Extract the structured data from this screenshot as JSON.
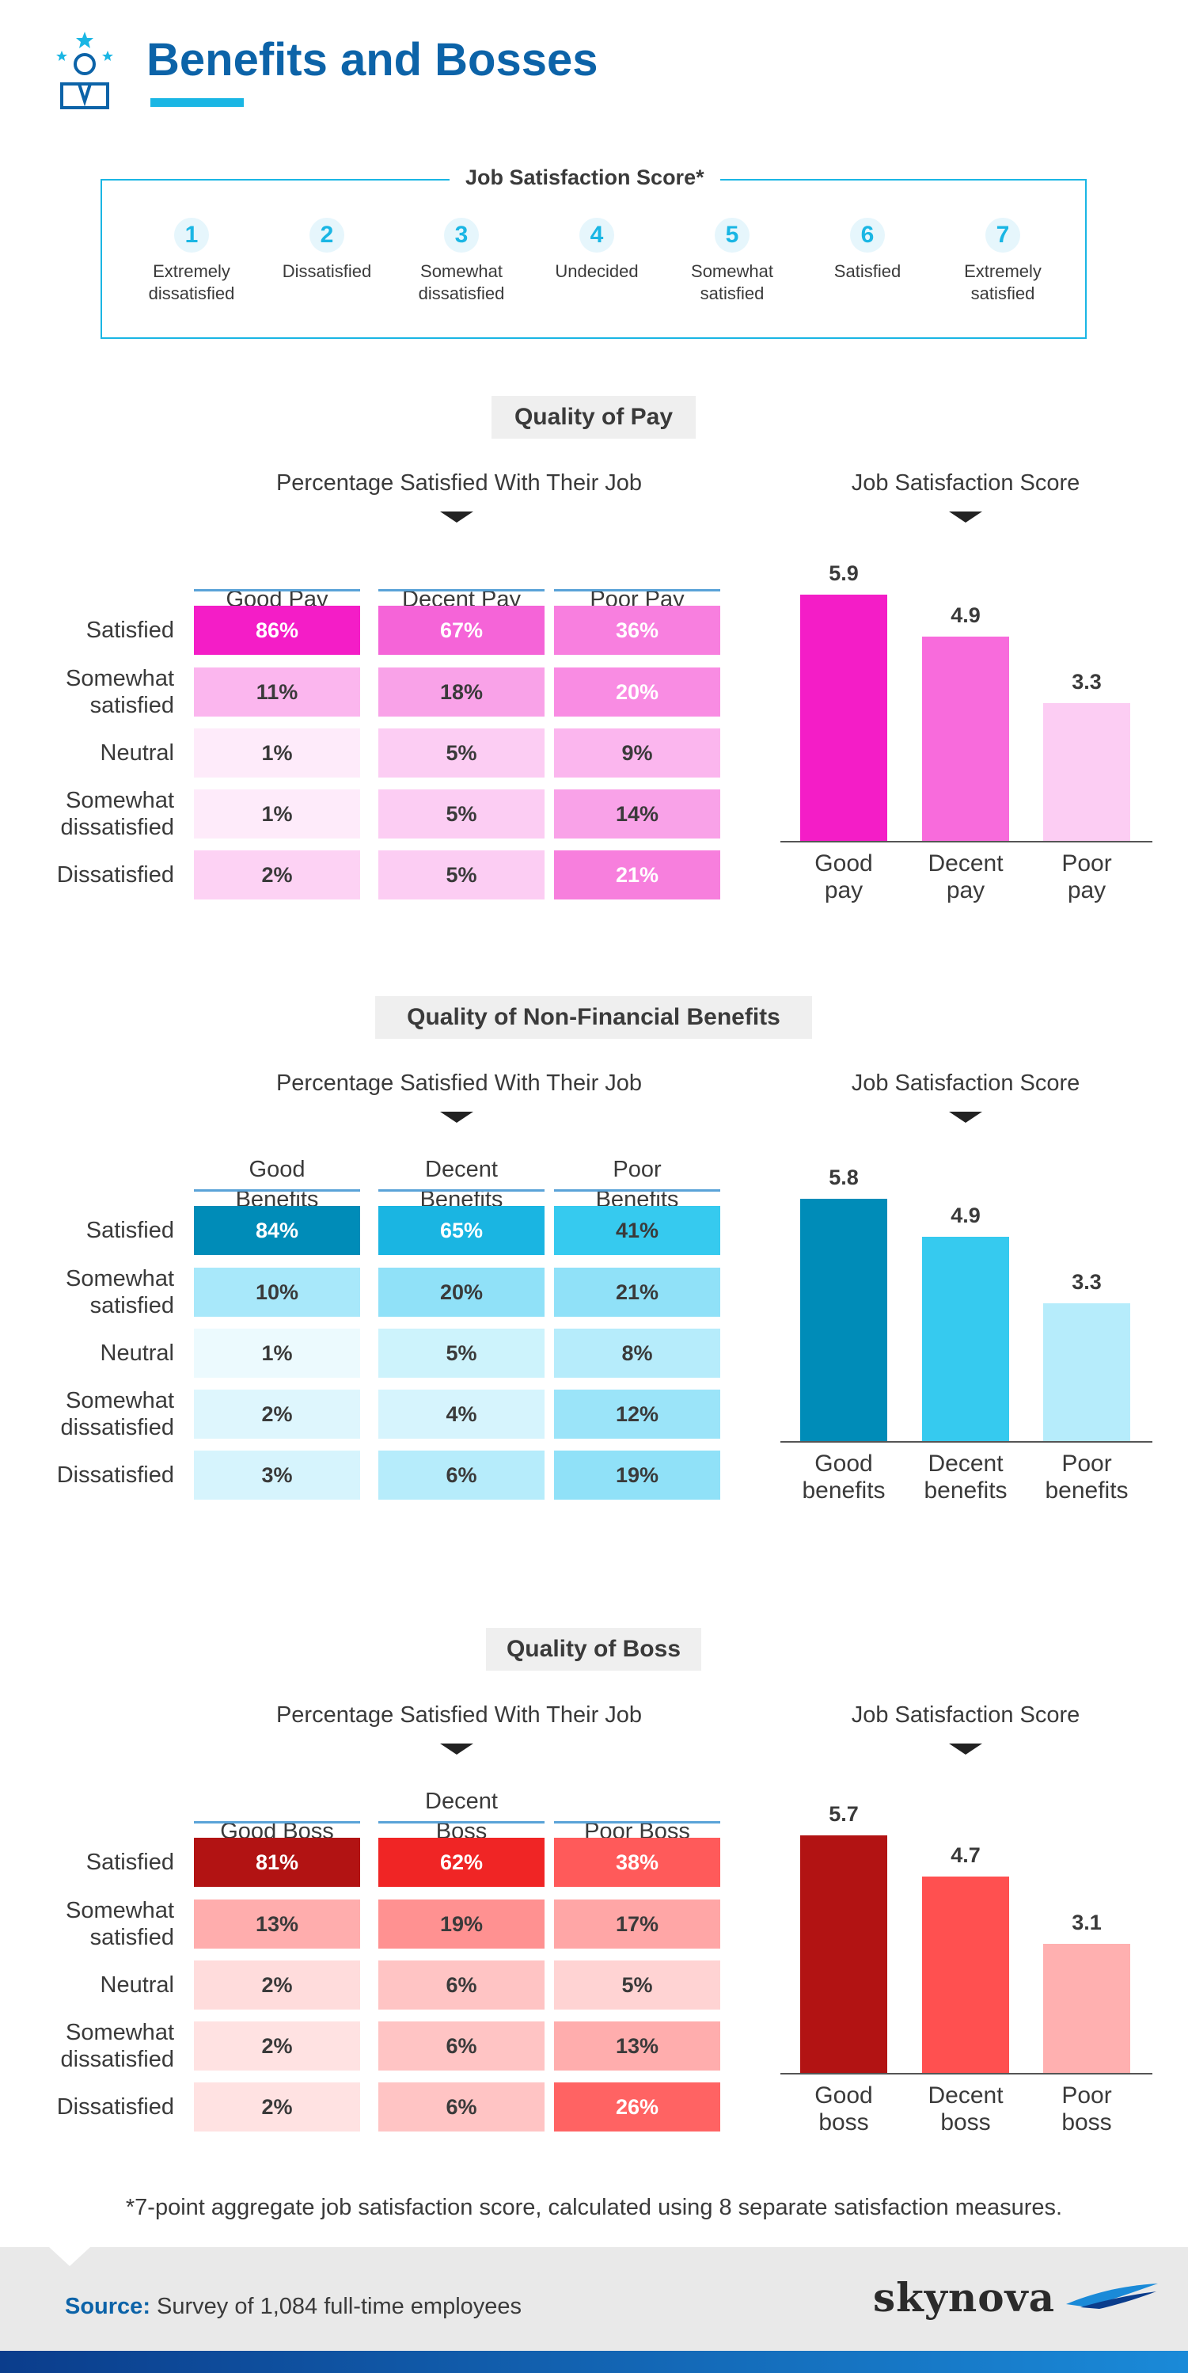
{
  "header": {
    "title": "Benefits and Bosses"
  },
  "scale": {
    "title": "Job Satisfaction Score*",
    "items": [
      {
        "num": "1",
        "label": "Extremely dissatisfied"
      },
      {
        "num": "2",
        "label": "Dissatisfied"
      },
      {
        "num": "3",
        "label": "Somewhat dissatisfied"
      },
      {
        "num": "4",
        "label": "Undecided"
      },
      {
        "num": "5",
        "label": "Somewhat satisfied"
      },
      {
        "num": "6",
        "label": "Satisfied"
      },
      {
        "num": "7",
        "label": "Extremely satisfied"
      }
    ]
  },
  "row_labels": [
    "Satisfied",
    "Somewhat satisfied",
    "Neutral",
    "Somewhat dissatisfied",
    "Dissatisfied"
  ],
  "table_title": "Percentage Satisfied With Their Job",
  "bar_title": "Job Satisfaction Score",
  "colors": {
    "pink": [
      "#f41dc7",
      "#f564d8",
      "#f98ce3",
      "#fbb6ee",
      "#fdd2f4",
      "#feebfa"
    ],
    "blue": [
      "#008cb8",
      "#1ab5e2",
      "#36caef",
      "#90e1f8",
      "#bff0fb",
      "#def6fd",
      "#ecfafe"
    ],
    "red": [
      "#b21313",
      "#f02525",
      "#ff5555",
      "#ff9a9a",
      "#ffc4c4",
      "#ffdcdc"
    ]
  },
  "sections": [
    {
      "title": "Quality of Pay",
      "columns": [
        "Good Pay",
        "Decent Pay",
        "Poor Pay"
      ],
      "cells": [
        [
          "86%",
          "67%",
          "36%"
        ],
        [
          "11%",
          "18%",
          "20%"
        ],
        [
          "1%",
          "5%",
          "9%"
        ],
        [
          "1%",
          "5%",
          "14%"
        ],
        [
          "2%",
          "5%",
          "21%"
        ]
      ],
      "cell_colors": [
        [
          "#f41dc7",
          "#f564d8",
          "#f87fdf"
        ],
        [
          "#fbb6ee",
          "#f9a2e8",
          "#f98ce3"
        ],
        [
          "#feebfa",
          "#fccdf3",
          "#fbb6ee"
        ],
        [
          "#feebfa",
          "#fccdf3",
          "#f9a2e8"
        ],
        [
          "#fdd2f4",
          "#fccdf3",
          "#f77fdd"
        ]
      ],
      "cell_text_colors": [
        [
          "#ffffff",
          "#ffffff",
          "#ffffff"
        ],
        [
          "#3a3a3a",
          "#3a3a3a",
          "#ffffff"
        ],
        [
          "#3a3a3a",
          "#3a3a3a",
          "#3a3a3a"
        ],
        [
          "#3a3a3a",
          "#3a3a3a",
          "#3a3a3a"
        ],
        [
          "#3a3a3a",
          "#3a3a3a",
          "#ffffff"
        ]
      ],
      "bar_categories": [
        "Good pay",
        "Decent pay",
        "Poor pay"
      ],
      "bar_colors": [
        "#f41dc7",
        "#f86bdc",
        "#fccdf3"
      ]
    },
    {
      "title": "Quality of Non-Financial Benefits",
      "columns": [
        "Good Benefits",
        "Decent Benefits",
        "Poor Benefits"
      ],
      "cells": [
        [
          "84%",
          "65%",
          "41%"
        ],
        [
          "10%",
          "20%",
          "21%"
        ],
        [
          "1%",
          "5%",
          "8%"
        ],
        [
          "2%",
          "4%",
          "12%"
        ],
        [
          "3%",
          "6%",
          "19%"
        ]
      ],
      "cell_colors": [
        [
          "#008cb8",
          "#1ab5e2",
          "#36caef"
        ],
        [
          "#a8e8fa",
          "#90e1f8",
          "#90e1f8"
        ],
        [
          "#ecfafe",
          "#cdf3fc",
          "#b6ecfb"
        ],
        [
          "#def6fd",
          "#d6f4fd",
          "#9be4f9"
        ],
        [
          "#d6f4fd",
          "#b6ecfb",
          "#90e1f8"
        ]
      ],
      "cell_text_colors": [
        [
          "#ffffff",
          "#ffffff",
          "#3a3a3a"
        ],
        [
          "#3a3a3a",
          "#3a3a3a",
          "#3a3a3a"
        ],
        [
          "#3a3a3a",
          "#3a3a3a",
          "#3a3a3a"
        ],
        [
          "#3a3a3a",
          "#3a3a3a",
          "#3a3a3a"
        ],
        [
          "#3a3a3a",
          "#3a3a3a",
          "#3a3a3a"
        ]
      ],
      "bar_categories": [
        "Good benefits",
        "Decent benefits",
        "Poor benefits"
      ],
      "bar_colors": [
        "#008cb8",
        "#36caef",
        "#b6ecfb"
      ]
    },
    {
      "title": "Quality of Boss",
      "columns": [
        "Good Boss",
        "Decent Boss",
        "Poor Boss"
      ],
      "cells": [
        [
          "81%",
          "62%",
          "38%"
        ],
        [
          "13%",
          "19%",
          "17%"
        ],
        [
          "2%",
          "6%",
          "5%"
        ],
        [
          "2%",
          "6%",
          "13%"
        ],
        [
          "2%",
          "6%",
          "26%"
        ]
      ],
      "cell_colors": [
        [
          "#b21313",
          "#f02525",
          "#ff5a5a"
        ],
        [
          "#ffadad",
          "#ff9191",
          "#ffa6a6"
        ],
        [
          "#ffdcdc",
          "#ffc4c4",
          "#ffd3d3"
        ],
        [
          "#ffe2e2",
          "#ffc4c4",
          "#ffadad"
        ],
        [
          "#ffe2e2",
          "#ffc4c4",
          "#ff6363"
        ]
      ],
      "cell_text_colors": [
        [
          "#ffffff",
          "#ffffff",
          "#ffffff"
        ],
        [
          "#3a3a3a",
          "#3a3a3a",
          "#3a3a3a"
        ],
        [
          "#3a3a3a",
          "#3a3a3a",
          "#3a3a3a"
        ],
        [
          "#3a3a3a",
          "#3a3a3a",
          "#3a3a3a"
        ],
        [
          "#3a3a3a",
          "#3a3a3a",
          "#ffffff"
        ]
      ],
      "bar_categories": [
        "Good boss",
        "Decent boss",
        "Poor boss"
      ],
      "bar_colors": [
        "#b21313",
        "#ff5050",
        "#ffb0b0"
      ]
    }
  ],
  "chart_data": [
    {
      "type": "table",
      "title": "Quality of Pay",
      "xlabel": "",
      "ylabel": "",
      "columns": [
        "Good Pay",
        "Decent Pay",
        "Poor Pay"
      ],
      "rows": [
        "Satisfied",
        "Somewhat satisfied",
        "Neutral",
        "Somewhat dissatisfied",
        "Dissatisfied"
      ],
      "values": [
        [
          86,
          67,
          36
        ],
        [
          11,
          18,
          20
        ],
        [
          1,
          5,
          9
        ],
        [
          1,
          5,
          14
        ],
        [
          2,
          5,
          21
        ]
      ]
    },
    {
      "type": "bar",
      "title": "Job Satisfaction Score",
      "categories": [
        "Good pay",
        "Decent pay",
        "Poor pay"
      ],
      "values": [
        5.9,
        4.9,
        3.3
      ],
      "ylim": [
        0,
        7
      ],
      "grid": false
    },
    {
      "type": "table",
      "title": "Quality of Non-Financial Benefits",
      "columns": [
        "Good Benefits",
        "Decent Benefits",
        "Poor Benefits"
      ],
      "rows": [
        "Satisfied",
        "Somewhat satisfied",
        "Neutral",
        "Somewhat dissatisfied",
        "Dissatisfied"
      ],
      "values": [
        [
          84,
          65,
          41
        ],
        [
          10,
          20,
          21
        ],
        [
          1,
          5,
          8
        ],
        [
          2,
          4,
          12
        ],
        [
          3,
          6,
          19
        ]
      ]
    },
    {
      "type": "bar",
      "title": "Job Satisfaction Score",
      "categories": [
        "Good benefits",
        "Decent benefits",
        "Poor benefits"
      ],
      "values": [
        5.8,
        4.9,
        3.3
      ],
      "ylim": [
        0,
        7
      ],
      "grid": false
    },
    {
      "type": "table",
      "title": "Quality of Boss",
      "columns": [
        "Good Boss",
        "Decent Boss",
        "Poor Boss"
      ],
      "rows": [
        "Satisfied",
        "Somewhat satisfied",
        "Neutral",
        "Somewhat dissatisfied",
        "Dissatisfied"
      ],
      "values": [
        [
          81,
          62,
          38
        ],
        [
          13,
          19,
          17
        ],
        [
          2,
          6,
          5
        ],
        [
          2,
          6,
          13
        ],
        [
          2,
          6,
          26
        ]
      ]
    },
    {
      "type": "bar",
      "title": "Job Satisfaction Score",
      "categories": [
        "Good boss",
        "Decent boss",
        "Poor boss"
      ],
      "values": [
        5.7,
        4.7,
        3.1
      ],
      "ylim": [
        0,
        7
      ],
      "grid": false
    }
  ],
  "footnote": "*7-point aggregate job satisfaction score, calculated using 8 separate satisfaction measures.",
  "footer": {
    "source_label": "Source:",
    "source_text": " Survey of 1,084 full-time employees",
    "brand": "skynova"
  }
}
